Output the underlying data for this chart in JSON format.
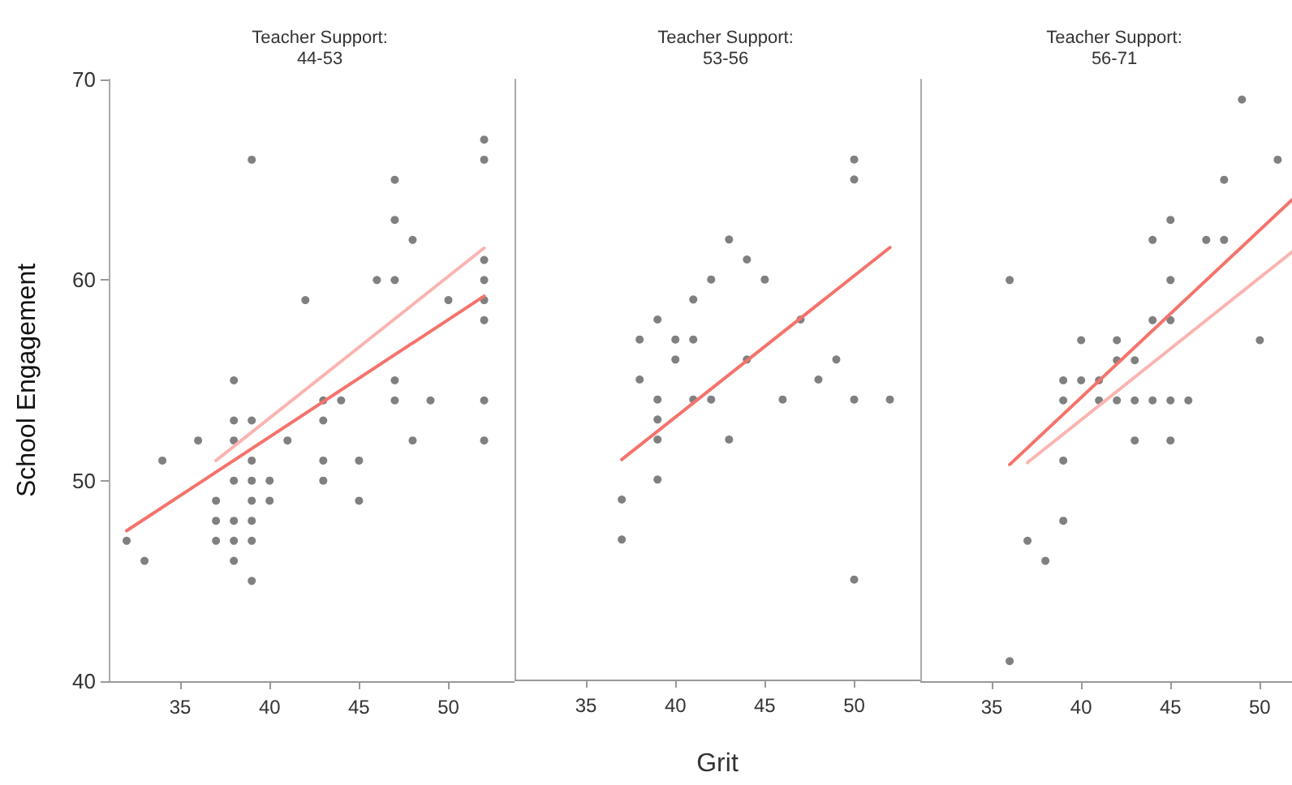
{
  "chart_data": [
    {
      "type": "scatter",
      "title": "Teacher Support:\n44-53",
      "ylabel": "School Engagement",
      "xlim": [
        31,
        53.7
      ],
      "xticks": [
        35,
        40,
        45,
        50
      ],
      "ylim": [
        40,
        70
      ],
      "yticks": [
        40,
        50,
        60,
        70
      ],
      "series": [
        {
          "type": "scatter",
          "marker": "circle",
          "color": "#555555",
          "x": [
            32,
            33,
            34,
            36,
            38,
            38,
            39,
            38,
            39,
            38,
            39,
            40,
            37,
            39,
            40,
            37,
            38,
            39,
            37,
            38,
            39,
            38,
            39,
            39,
            41,
            42,
            43,
            44,
            43,
            43,
            43,
            45,
            45,
            46,
            47,
            47,
            47,
            48,
            47,
            47,
            48,
            49,
            50,
            52,
            52,
            52,
            52,
            52,
            52,
            52,
            52
          ],
          "values": [
            47,
            46,
            51,
            52,
            55,
            53,
            53,
            52,
            51,
            50,
            50,
            50,
            49,
            49,
            49,
            48,
            48,
            48,
            47,
            47,
            47,
            46,
            45,
            66,
            52,
            59,
            54,
            54,
            53,
            51,
            50,
            51,
            49,
            60,
            60,
            65,
            63,
            62,
            55,
            54,
            52,
            54,
            59,
            67,
            66,
            61,
            60,
            59,
            58,
            54,
            52
          ]
        },
        {
          "type": "line",
          "marker": "none",
          "color": "#f4736b",
          "x": [
            32,
            52
          ],
          "values": [
            47.5,
            59.2
          ]
        },
        {
          "type": "line",
          "marker": "none",
          "color": "#fbb4b0",
          "x": [
            37,
            52
          ],
          "values": [
            51.0,
            61.6
          ]
        }
      ]
    },
    {
      "type": "scatter",
      "title": "Teacher Support:\n53-56",
      "xlabel": "Grit",
      "xlim": [
        31,
        53.7
      ],
      "xticks": [
        35,
        40,
        45,
        50
      ],
      "ylim": [
        40,
        70
      ],
      "tick_labels": "x",
      "series": [
        {
          "type": "scatter",
          "marker": "circle",
          "color": "#555555",
          "x": [
            37,
            37,
            38,
            38,
            39,
            39,
            39,
            39,
            39,
            40,
            40,
            41,
            41,
            41,
            42,
            42,
            43,
            43,
            44,
            44,
            45,
            46,
            47,
            48,
            49,
            50,
            50,
            50,
            50,
            52
          ],
          "values": [
            49,
            47,
            55,
            57,
            58,
            54,
            53,
            52,
            50,
            57,
            56,
            59,
            57,
            54,
            54,
            60,
            62,
            52,
            61,
            56,
            60,
            54,
            58,
            55,
            56,
            66,
            65,
            54,
            45,
            54
          ]
        },
        {
          "type": "line",
          "marker": "none",
          "color": "#f4736b",
          "x": [
            37,
            52
          ],
          "values": [
            51.0,
            61.6
          ]
        }
      ]
    },
    {
      "type": "scatter",
      "title": "Teacher Support:\n56-71",
      "xlim": [
        31,
        51.8
      ],
      "xticks": [
        35,
        40,
        45,
        50
      ],
      "ylim": [
        40,
        70
      ],
      "tick_labels": "x",
      "series": [
        {
          "type": "scatter",
          "marker": "circle",
          "color": "#555555",
          "x": [
            36,
            36,
            37,
            38,
            39,
            39,
            39,
            39,
            40,
            40,
            41,
            41,
            42,
            42,
            42,
            43,
            43,
            43,
            44,
            44,
            44,
            45,
            45,
            45,
            45,
            45,
            46,
            47,
            48,
            48,
            49,
            50,
            51
          ],
          "values": [
            41,
            60,
            47,
            46,
            48,
            51,
            54,
            55,
            57,
            55,
            55,
            54,
            57,
            56,
            54,
            56,
            54,
            52,
            62,
            58,
            54,
            63,
            60,
            58,
            54,
            52,
            54,
            62,
            65,
            62,
            69,
            57,
            66
          ]
        },
        {
          "type": "line",
          "marker": "none",
          "color": "#f4736b",
          "x": [
            36,
            51.8
          ],
          "values": [
            50.8,
            64.0
          ]
        },
        {
          "type": "line",
          "marker": "none",
          "color": "#fbb4b0",
          "x": [
            37,
            51.8
          ],
          "values": [
            50.9,
            61.4
          ]
        }
      ]
    }
  ]
}
